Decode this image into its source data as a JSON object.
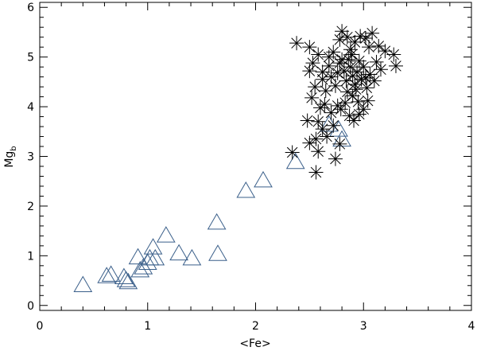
{
  "chart_data": {
    "type": "scatter",
    "title": "",
    "xlabel": "<Fe>",
    "ylabel": {
      "main": "Mg",
      "sub": "b"
    },
    "xlim": [
      0,
      4
    ],
    "ylim": [
      -0.1,
      6.1
    ],
    "x_ticks": [
      0,
      1,
      2,
      3,
      4
    ],
    "y_ticks": [
      0,
      1,
      2,
      3,
      4,
      5,
      6
    ],
    "grid": false,
    "legend": "none",
    "series": [
      {
        "marker": "triangle",
        "color": "#3a5f8a",
        "points": [
          [
            0.4,
            0.42
          ],
          [
            0.62,
            0.6
          ],
          [
            0.66,
            0.63
          ],
          [
            0.78,
            0.58
          ],
          [
            0.8,
            0.52
          ],
          [
            0.82,
            0.48
          ],
          [
            0.91,
            0.98
          ],
          [
            0.93,
            0.72
          ],
          [
            0.96,
            0.78
          ],
          [
            1.0,
            0.87
          ],
          [
            1.02,
            0.96
          ],
          [
            1.05,
            1.18
          ],
          [
            1.07,
            0.96
          ],
          [
            1.17,
            1.42
          ],
          [
            1.29,
            1.06
          ],
          [
            1.41,
            0.96
          ],
          [
            1.64,
            1.68
          ],
          [
            1.65,
            1.05
          ],
          [
            1.91,
            2.32
          ],
          [
            2.07,
            2.53
          ],
          [
            2.37,
            2.9
          ],
          [
            2.68,
            3.65
          ],
          [
            2.8,
            3.35
          ],
          [
            2.77,
            3.55
          ]
        ]
      },
      {
        "marker": "asterisk",
        "color": "#000000",
        "points": [
          [
            2.38,
            5.28
          ],
          [
            2.5,
            5.2
          ],
          [
            2.53,
            4.88
          ],
          [
            2.58,
            5.05
          ],
          [
            2.62,
            4.55
          ],
          [
            2.68,
            4.82
          ],
          [
            2.72,
            5.1
          ],
          [
            2.78,
            5.35
          ],
          [
            2.8,
            5.52
          ],
          [
            2.85,
            5.4
          ],
          [
            2.88,
            5.15
          ],
          [
            2.92,
            5.3
          ],
          [
            2.97,
            5.42
          ],
          [
            3.02,
            5.38
          ],
          [
            3.08,
            5.48
          ],
          [
            3.14,
            5.22
          ],
          [
            3.2,
            5.12
          ],
          [
            3.28,
            5.05
          ],
          [
            3.3,
            4.82
          ],
          [
            3.05,
            5.2
          ],
          [
            2.5,
            4.72
          ],
          [
            2.55,
            4.4
          ],
          [
            2.62,
            4.7
          ],
          [
            2.65,
            4.32
          ],
          [
            2.7,
            4.6
          ],
          [
            2.74,
            4.42
          ],
          [
            2.78,
            4.88
          ],
          [
            2.82,
            4.72
          ],
          [
            2.84,
            4.52
          ],
          [
            2.86,
            4.95
          ],
          [
            2.88,
            4.8
          ],
          [
            2.9,
            4.62
          ],
          [
            2.92,
            4.45
          ],
          [
            2.94,
            4.7
          ],
          [
            2.96,
            4.92
          ],
          [
            2.98,
            4.55
          ],
          [
            3.0,
            4.8
          ],
          [
            3.03,
            4.38
          ],
          [
            3.06,
            4.65
          ],
          [
            3.1,
            4.52
          ],
          [
            3.12,
            4.9
          ],
          [
            2.8,
            4.95
          ],
          [
            2.85,
            4.3
          ],
          [
            2.9,
            4.22
          ],
          [
            2.95,
            4.1
          ],
          [
            2.52,
            4.18
          ],
          [
            2.6,
            3.98
          ],
          [
            2.64,
            4.05
          ],
          [
            2.7,
            3.88
          ],
          [
            2.76,
            4.02
          ],
          [
            2.79,
            3.95
          ],
          [
            2.83,
            4.08
          ],
          [
            2.87,
            3.82
          ],
          [
            2.91,
            3.72
          ],
          [
            2.96,
            3.85
          ],
          [
            3.0,
            3.95
          ],
          [
            3.04,
            4.12
          ],
          [
            2.58,
            3.7
          ],
          [
            2.62,
            3.55
          ],
          [
            2.72,
            3.62
          ],
          [
            2.66,
            3.4
          ],
          [
            2.56,
            3.35
          ],
          [
            2.5,
            3.27
          ],
          [
            2.58,
            3.1
          ],
          [
            2.34,
            3.08
          ],
          [
            2.78,
            3.25
          ],
          [
            2.74,
            2.95
          ],
          [
            2.56,
            2.68
          ],
          [
            2.48,
            3.72
          ],
          [
            2.93,
            4.35
          ],
          [
            3.02,
            4.58
          ],
          [
            2.89,
            5.05
          ],
          [
            2.76,
            4.68
          ],
          [
            2.68,
            5.0
          ],
          [
            3.16,
            4.75
          ]
        ]
      }
    ]
  }
}
